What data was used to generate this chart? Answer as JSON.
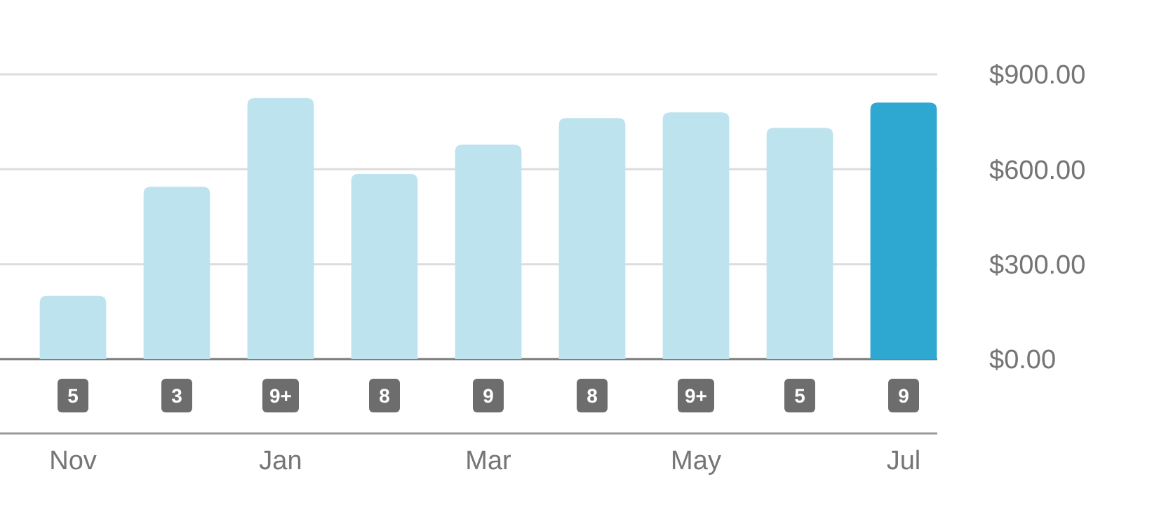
{
  "chart_data": {
    "type": "bar",
    "categories": [
      "Nov",
      null,
      "Jan",
      null,
      "Mar",
      null,
      "May",
      null,
      "Jul"
    ],
    "values": [
      200,
      545,
      825,
      585,
      678,
      762,
      780,
      731,
      811
    ],
    "colors": [
      "#bde3ef",
      "#bde3ef",
      "#bde3ef",
      "#bde3ef",
      "#bde3ef",
      "#bde3ef",
      "#bde3ef",
      "#bde3ef",
      "#2ea7d1"
    ],
    "ylim": [
      0,
      900
    ],
    "yticks": [
      {
        "value": 0,
        "label": "$0.00"
      },
      {
        "value": 300,
        "label": "$300.00"
      },
      {
        "value": 600,
        "label": "$600.00"
      },
      {
        "value": 900,
        "label": "$900.00"
      }
    ],
    "grid": "y",
    "annotations": [
      "5",
      "3",
      "9+",
      "8",
      "9",
      "8",
      "9+",
      "5",
      "9"
    ]
  }
}
